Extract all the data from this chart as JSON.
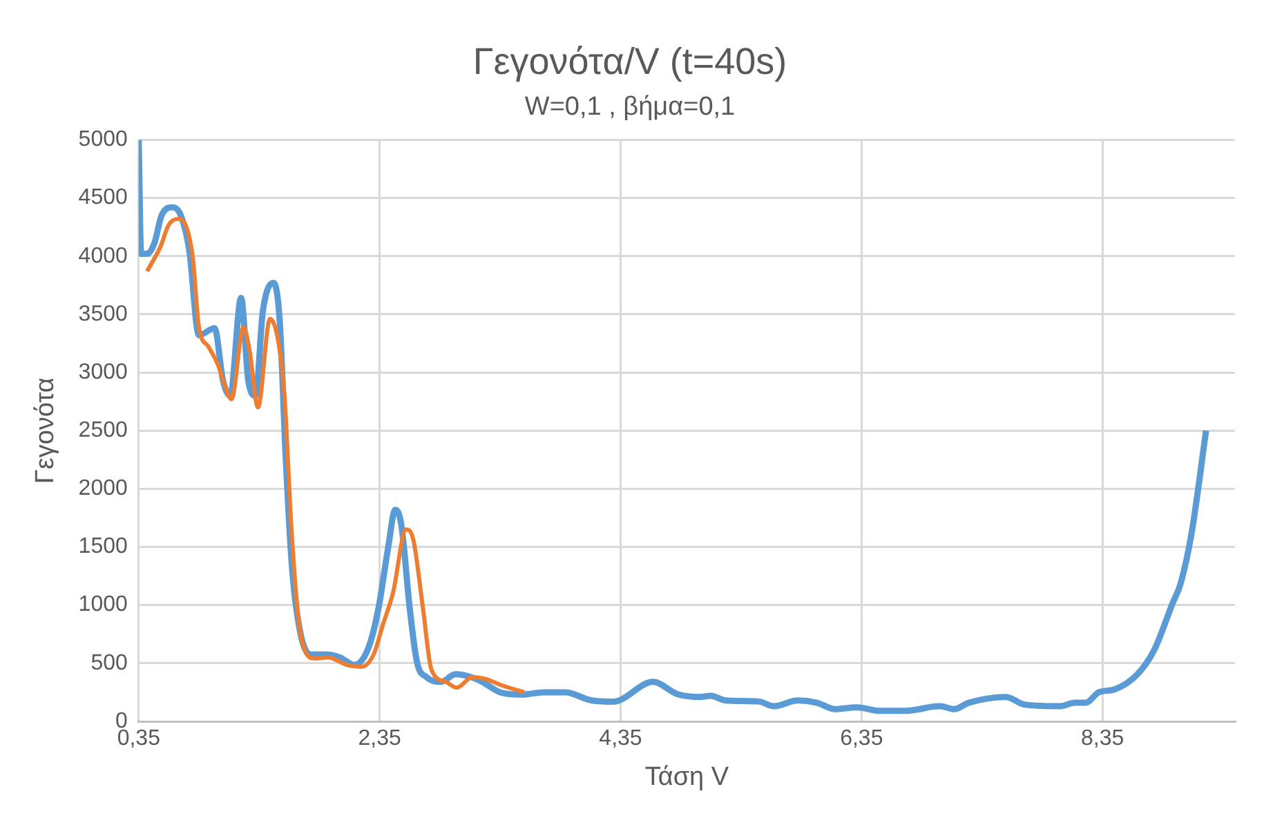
{
  "chart_data": {
    "type": "line",
    "title": "Γεγονότα/V (t=40s)",
    "subtitle": "W=0,1 , βήμα=0,1",
    "xlabel": "Τάση V",
    "ylabel": "Γεγονότα",
    "xlim": [
      0.35,
      9.45
    ],
    "xticks": [
      {
        "value": 0.35,
        "label": "0,35"
      },
      {
        "value": 2.35,
        "label": "2,35"
      },
      {
        "value": 4.35,
        "label": "4,35"
      },
      {
        "value": 6.35,
        "label": "6,35"
      },
      {
        "value": 8.35,
        "label": "8,35"
      }
    ],
    "ylim": [
      0,
      5000
    ],
    "yticks": [
      0,
      500,
      1000,
      1500,
      2000,
      2500,
      3000,
      3500,
      4000,
      4500,
      5000
    ],
    "grid": true,
    "legend": false,
    "marker": "none",
    "line_style": "solid",
    "series": [
      {
        "color": "#5b9bd5",
        "x": [
          0.35,
          0.37,
          0.42,
          0.48,
          0.54,
          0.63,
          0.7,
          0.77,
          0.85,
          0.98,
          1.05,
          1.11,
          1.2,
          1.26,
          1.32,
          1.38,
          1.47,
          1.52,
          1.57,
          1.62,
          1.69,
          1.78,
          1.9,
          2.02,
          2.14,
          2.26,
          2.34,
          2.42,
          2.48,
          2.53,
          2.6,
          2.66,
          2.74,
          2.86,
          2.98,
          3.11,
          3.2,
          3.35,
          3.53,
          3.71,
          3.89,
          4.11,
          4.29,
          4.62,
          4.82,
          5.01,
          5.1,
          5.22,
          5.5,
          5.62,
          5.82,
          5.98,
          6.13,
          6.31,
          6.51,
          6.71,
          7.0,
          7.12,
          7.24,
          7.55,
          7.7,
          8.0,
          8.12,
          8.21,
          8.32,
          8.45,
          8.64,
          8.78,
          8.93,
          9.0,
          9.09,
          9.21
        ],
        "values": [
          5000,
          4020,
          4020,
          4110,
          4350,
          4420,
          4350,
          4050,
          3320,
          3380,
          2930,
          2800,
          3640,
          2930,
          2800,
          3520,
          3770,
          3450,
          2280,
          1360,
          770,
          575,
          575,
          550,
          485,
          640,
          970,
          1490,
          1820,
          1690,
          970,
          510,
          380,
          340,
          405,
          380,
          340,
          250,
          230,
          250,
          250,
          180,
          170,
          340,
          235,
          210,
          220,
          180,
          170,
          130,
          180,
          160,
          105,
          120,
          90,
          90,
          130,
          105,
          160,
          210,
          145,
          130,
          160,
          160,
          250,
          275,
          405,
          615,
          1010,
          1190,
          1620,
          2500
        ]
      },
      {
        "color": "#ed7d31",
        "x": [
          0.42,
          0.53,
          0.6,
          0.68,
          0.75,
          0.8,
          0.85,
          0.93,
          1.01,
          1.07,
          1.12,
          1.22,
          1.27,
          1.34,
          1.44,
          1.51,
          1.56,
          1.62,
          1.69,
          1.81,
          1.92,
          2.08,
          2.2,
          2.3,
          2.38,
          2.46,
          2.57,
          2.63,
          2.71,
          2.78,
          2.9,
          2.99,
          3.12,
          3.23,
          3.35,
          3.55
        ],
        "values": [
          3870,
          4080,
          4270,
          4320,
          4240,
          3980,
          3390,
          3220,
          3060,
          2870,
          2770,
          3390,
          3190,
          2700,
          3460,
          3260,
          2800,
          1620,
          770,
          540,
          550,
          485,
          470,
          575,
          840,
          1100,
          1650,
          1560,
          970,
          445,
          340,
          290,
          380,
          365,
          315,
          250
        ]
      }
    ]
  }
}
